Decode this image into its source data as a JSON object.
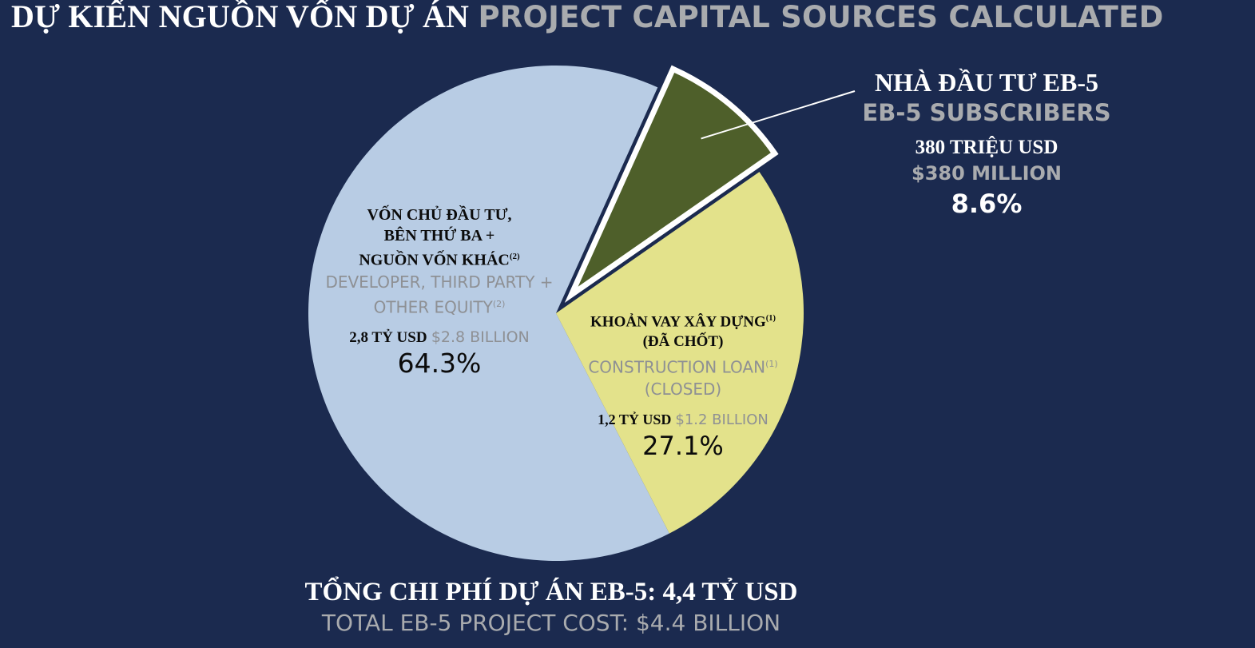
{
  "title": {
    "vn": "DỰ KIẾN NGUỒN VỐN DỰ ÁN",
    "en": "PROJECT CAPITAL SOURCES CALCULATED"
  },
  "chart_data": {
    "type": "pie",
    "slices": [
      {
        "key": "developer",
        "vn_lines": [
          "VỐN CHỦ ĐẦU TƯ,",
          "BÊN THỨ BA +",
          "NGUỒN VỐN KHÁC"
        ],
        "vn_note": "(2)",
        "en_lines": [
          "DEVELOPER, THIRD PARTY +",
          "OTHER EQUITY"
        ],
        "en_note": "(2)",
        "amount_vn": "2,8 TỶ USD",
        "amount_en": "$2.8 BILLION",
        "value": 64.3,
        "percent_label": "64.3%",
        "color": "#b8cce4"
      },
      {
        "key": "construction",
        "vn_lines": [
          "KHOẢN VAY XÂY DỰNG",
          "(ĐÃ CHỐT)"
        ],
        "vn_note": "(1)",
        "en_lines": [
          "CONSTRUCTION LOAN",
          "(CLOSED)"
        ],
        "en_note": "(1)",
        "amount_vn": "1,2 TỶ USD",
        "amount_en": "$1.2 BILLION",
        "value": 27.1,
        "percent_label": "27.1%",
        "color": "#e3e28b"
      },
      {
        "key": "eb5",
        "vn_lines": [
          "NHÀ ĐẦU TƯ EB-5"
        ],
        "en_lines": [
          "EB-5 SUBSCRIBERS"
        ],
        "amount_vn": "380 TRIỆU USD",
        "amount_en": "$380 MILLION",
        "value": 8.6,
        "percent_label": "8.6%",
        "color": "#4e5f2a",
        "exploded": true
      }
    ]
  },
  "footer": {
    "vn": "TỔNG CHI PHÍ DỰ ÁN EB-5: 4,4 TỶ USD",
    "en": "TOTAL EB-5 PROJECT COST: $4.4 BILLION"
  },
  "colors": {
    "background": "#1b2a4f",
    "explode_border": "#ffffff",
    "leader_line": "#ffffff"
  }
}
